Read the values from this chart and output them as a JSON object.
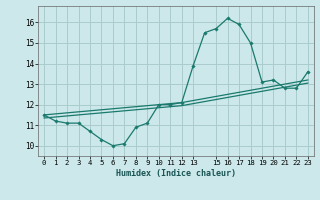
{
  "xlabel": "Humidex (Indice chaleur)",
  "bg_color": "#cce8ea",
  "grid_color": "#aacccc",
  "line_color": "#1a7a6e",
  "x_data": [
    0,
    1,
    2,
    3,
    4,
    5,
    6,
    7,
    8,
    9,
    10,
    11,
    12,
    13,
    14,
    15,
    16,
    17,
    18,
    19,
    20,
    21,
    22,
    23
  ],
  "y_main": [
    11.5,
    11.2,
    11.1,
    11.1,
    10.7,
    10.3,
    10.0,
    10.1,
    10.9,
    11.1,
    12.0,
    12.0,
    12.1,
    13.9,
    15.5,
    15.7,
    16.2,
    15.9,
    15.0,
    13.1,
    13.2,
    12.8,
    12.8,
    13.6
  ],
  "y_trend1": [
    11.5,
    11.55,
    11.6,
    11.65,
    11.7,
    11.75,
    11.8,
    11.85,
    11.9,
    11.95,
    12.0,
    12.05,
    12.1,
    12.2,
    12.3,
    12.4,
    12.5,
    12.6,
    12.7,
    12.8,
    12.9,
    13.0,
    13.1,
    13.2
  ],
  "y_trend2": [
    11.35,
    11.4,
    11.45,
    11.5,
    11.55,
    11.6,
    11.65,
    11.7,
    11.75,
    11.8,
    11.85,
    11.9,
    11.95,
    12.05,
    12.15,
    12.25,
    12.35,
    12.45,
    12.55,
    12.65,
    12.75,
    12.85,
    12.95,
    13.05
  ],
  "ylim": [
    9.5,
    16.8
  ],
  "xlim": [
    -0.5,
    23.5
  ],
  "yticks": [
    10,
    11,
    12,
    13,
    14,
    15,
    16
  ],
  "xticks": [
    0,
    1,
    2,
    3,
    4,
    5,
    6,
    7,
    8,
    9,
    10,
    11,
    12,
    13,
    15,
    16,
    17,
    18,
    19,
    20,
    21,
    22,
    23
  ],
  "xtick_labels": [
    "0",
    "1",
    "2",
    "3",
    "4",
    "5",
    "6",
    "7",
    "8",
    "9",
    "10",
    "11",
    "12",
    "13",
    "15",
    "16",
    "17",
    "18",
    "19",
    "20",
    "21",
    "22",
    "23"
  ]
}
